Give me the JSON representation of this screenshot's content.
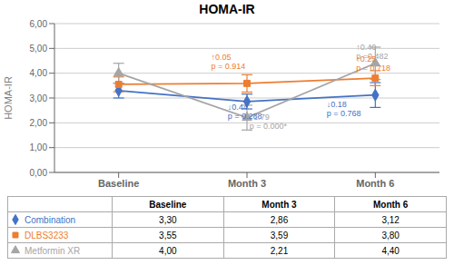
{
  "chart_data": {
    "type": "line",
    "title": "HOMA-IR",
    "y_label": "HOMA-IR",
    "categories": [
      "Baseline",
      "Month 3",
      "Month 6"
    ],
    "series": [
      {
        "name": "Combination",
        "color": "#4472C4",
        "marker": "diamond",
        "values": [
          3.3,
          2.86,
          3.12
        ],
        "errors": [
          0.3,
          0.3,
          0.5
        ],
        "value_labels": [
          "3,30",
          "2,86",
          "3,12"
        ]
      },
      {
        "name": "DLBS3233",
        "color": "#ED7D31",
        "marker": "square",
        "values": [
          3.55,
          3.59,
          3.8
        ],
        "errors": [
          0.3,
          0.35,
          0.3
        ],
        "value_labels": [
          "3,55",
          "3,59",
          "3,80"
        ]
      },
      {
        "name": "Metformin XR",
        "color": "#A5A5A5",
        "marker": "triangle",
        "values": [
          4.0,
          2.21,
          4.4
        ],
        "errors": [
          0.4,
          0.5,
          0.65
        ],
        "value_labels": [
          "4,00",
          "2,21",
          "4,40"
        ]
      }
    ],
    "ylim": [
      0,
      6.0
    ],
    "yticks": [
      {
        "value": 0,
        "label": "0,00"
      },
      {
        "value": 1,
        "label": "1,00"
      },
      {
        "value": 2,
        "label": "2,00"
      },
      {
        "value": 3,
        "label": "3,00"
      },
      {
        "value": 4,
        "label": "4,00"
      },
      {
        "value": 5,
        "label": "5,00"
      },
      {
        "value": 6,
        "label": "6,00"
      }
    ],
    "grid": true,
    "annotations": [
      {
        "text": "↓0.44\np = 0.288",
        "x": 0.85,
        "y": 2.45,
        "color": "#4472C4"
      },
      {
        "text": "↓1.79\np = 0.000*",
        "x": 1.02,
        "y": 2.05,
        "color": "#A5A5A5"
      },
      {
        "text": "↓0.18\np = 0.768",
        "x": 1.62,
        "y": 2.55,
        "color": "#4472C4"
      },
      {
        "text": "↑0.05\np = 0.914",
        "x": 0.72,
        "y": 4.45,
        "color": "#ED7D31"
      },
      {
        "text": "↑0.40\np =0.482",
        "x": 1.85,
        "y": 4.85,
        "color": "#A5A5A5"
      },
      {
        "text": "↑0.25\np = 0.718",
        "x": 1.85,
        "y": 4.4,
        "color": "#ED7D31"
      }
    ]
  }
}
